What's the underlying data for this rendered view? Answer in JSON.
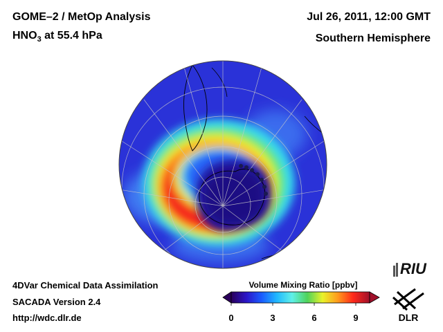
{
  "title": {
    "line1": "GOME–2 / MetOp Analysis",
    "line2_species": "HNO",
    "line2_subscript": "3",
    "line2_rest": " at 55.4 hPa",
    "date": "Jul 26, 2011, 12:00 GMT",
    "region": "Southern Hemisphere"
  },
  "footer": {
    "line1": "4DVar Chemical Data Assimilation",
    "line2": "SACADA Version 2.4",
    "line3": "http://wdc.dlr.de"
  },
  "colorbar": {
    "title": "Volume Mixing Ratio [ppbv]",
    "ticks": [
      "0",
      "3",
      "6",
      "9"
    ],
    "min": 0,
    "max": 10,
    "colors": [
      "#2a005a",
      "#2b15c8",
      "#1a5cff",
      "#21b8ff",
      "#5ff0e8",
      "#4fd35a",
      "#e9f22a",
      "#ff9a1c",
      "#ff2a1a",
      "#a0102a"
    ]
  },
  "logos": {
    "riu": "RIU",
    "dlr": "DLR"
  },
  "map": {
    "projection": "orthographic, south pole centered",
    "field": "HNO3 volume mixing ratio",
    "low_value_core_ppbv": 1,
    "background_ppbv": 2,
    "collar_peak_ppbv": 9
  }
}
